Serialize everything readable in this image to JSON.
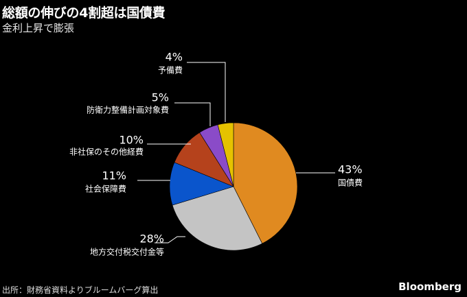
{
  "header": {
    "title": "総額の伸びの4割超は国債費",
    "subtitle": "金利上昇で膨張"
  },
  "footer": {
    "source": "出所：財務省資料よりブルームバーグ算出",
    "brand": "Bloomberg"
  },
  "chart_data": {
    "type": "pie",
    "title": "総額の伸びの4割超は国債費",
    "subtitle": "金利上昇で膨張",
    "start": "12 o'clock",
    "direction": "clockwise",
    "slices": [
      {
        "label": "国債費",
        "value": 43,
        "value_label": "43%",
        "color": "#e08a20"
      },
      {
        "label": "地方交付税交付金等",
        "value": 28,
        "value_label": "28%",
        "color": "#c4c4c4"
      },
      {
        "label": "社会保障費",
        "value": 11,
        "value_label": "11%",
        "color": "#0a55cc"
      },
      {
        "label": "非社保のその他経費",
        "value": 10,
        "value_label": "10%",
        "color": "#b5421c"
      },
      {
        "label": "防衛力整備計画対象費",
        "value": 5,
        "value_label": "5%",
        "color": "#8a4bc8"
      },
      {
        "label": "予備費",
        "value": 4,
        "value_label": "4%",
        "color": "#e5c200"
      }
    ]
  }
}
